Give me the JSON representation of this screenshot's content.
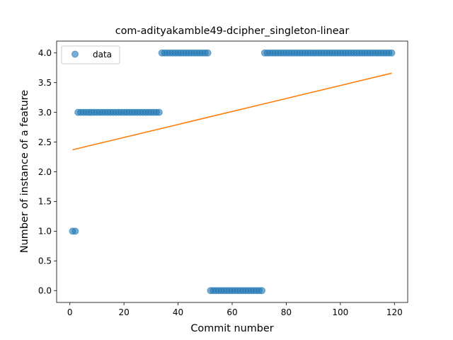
{
  "chart_data": {
    "type": "scatter",
    "title": "com-adityakamble49-dcipher_singleton-linear",
    "xlabel": "Commit number",
    "ylabel": "Number of instance of a feature",
    "xlim": [
      -4.9,
      124.9
    ],
    "ylim": [
      -0.2,
      4.2
    ],
    "xticks": [
      0,
      20,
      40,
      60,
      80,
      100,
      120
    ],
    "yticks": [
      0.0,
      0.5,
      1.0,
      1.5,
      2.0,
      2.5,
      3.0,
      3.5,
      4.0
    ],
    "xtick_labels": [
      "0",
      "20",
      "40",
      "60",
      "80",
      "100",
      "120"
    ],
    "ytick_labels": [
      "0.0",
      "0.5",
      "1.0",
      "1.5",
      "2.0",
      "2.5",
      "3.0",
      "3.5",
      "4.0"
    ],
    "grid": false,
    "legend": {
      "placement": "top-left",
      "entries": [
        "data"
      ]
    },
    "series": [
      {
        "name": "data",
        "kind": "scatter",
        "color": "#1f77b4",
        "segments": [
          {
            "x_start": 1,
            "x_end": 2,
            "y": 1
          },
          {
            "x_start": 3,
            "x_end": 33,
            "y": 3
          },
          {
            "x_start": 34,
            "x_end": 51,
            "y": 4
          },
          {
            "x_start": 52,
            "x_end": 71,
            "y": 0
          },
          {
            "x_start": 72,
            "x_end": 119,
            "y": 4
          }
        ]
      },
      {
        "kind": "line",
        "color": "#ff7f0e",
        "x": [
          1,
          119
        ],
        "y": [
          2.37,
          3.66
        ]
      }
    ]
  }
}
